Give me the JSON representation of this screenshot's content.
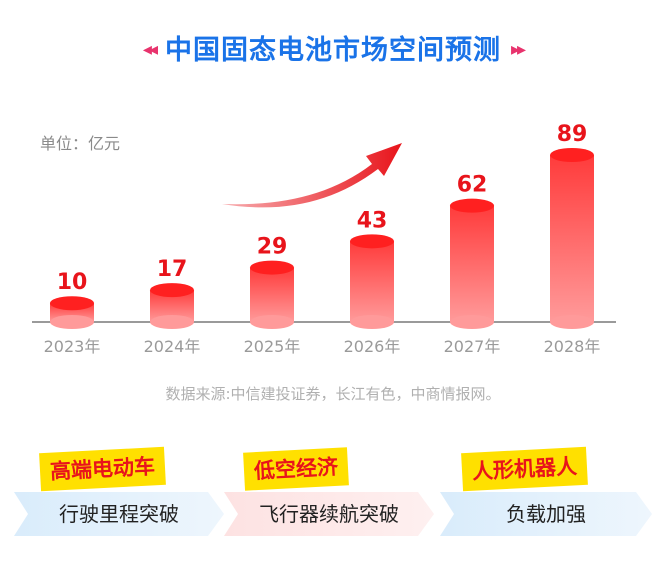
{
  "title": "中国固态电池市场空间预测",
  "title_deco_left": "◂◂",
  "title_deco_right": "▸▸",
  "unit": "单位：亿元",
  "source": "数据来源:中信建投证券，长江有色，中商情报网。",
  "chart_data": {
    "type": "bar",
    "title": "中国固态电池市场空间预测",
    "ylabel": "单位：亿元",
    "categories": [
      "2023年",
      "2024年",
      "2025年",
      "2026年",
      "2027年",
      "2028年"
    ],
    "values": [
      10,
      17,
      29,
      43,
      62,
      89
    ],
    "data_labels": [
      "10",
      "17",
      "29",
      "43",
      "62",
      "89"
    ],
    "ylim": [
      0,
      89
    ],
    "grid": false,
    "legend": "none",
    "colors": {
      "bar_top": "#ff3b3b",
      "bar_bottom": "#ff9a9a",
      "label": "#e8141b",
      "axis": "#9a9a9a",
      "arrow": "#e8141b"
    }
  },
  "features": [
    {
      "title": "高端电动车",
      "subtitle": "行驶里程突破"
    },
    {
      "title": "低空经济",
      "subtitle": "飞行器续航突破"
    },
    {
      "title": "人形机器人",
      "subtitle": "负载加强"
    }
  ]
}
